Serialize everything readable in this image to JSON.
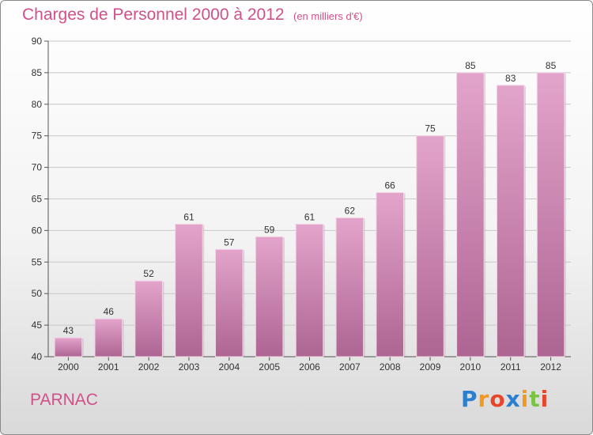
{
  "header": {
    "title": "Charges de Personnel 2000 à 2012",
    "subtitle": "(en milliers d'€)"
  },
  "footer": {
    "place": "PARNAC",
    "logo": "Proxiti"
  },
  "colors": {
    "title": "#d0508a",
    "bar_top": "#e3a4cb",
    "bar_bottom": "#ad6592",
    "grid": "#c8c8c8"
  },
  "chart_data": {
    "type": "bar",
    "categories": [
      "2000",
      "2001",
      "2002",
      "2003",
      "2004",
      "2005",
      "2006",
      "2007",
      "2008",
      "2009",
      "2010",
      "2011",
      "2012"
    ],
    "values": [
      43,
      46,
      52,
      61,
      57,
      59,
      61,
      62,
      66,
      75,
      85,
      83,
      85
    ],
    "ylim": [
      40,
      90
    ],
    "yticks": [
      40,
      45,
      50,
      55,
      60,
      65,
      70,
      75,
      80,
      85,
      90
    ],
    "grid": true,
    "title": "Charges de Personnel 2000 à 2012",
    "xlabel": "",
    "ylabel": ""
  }
}
